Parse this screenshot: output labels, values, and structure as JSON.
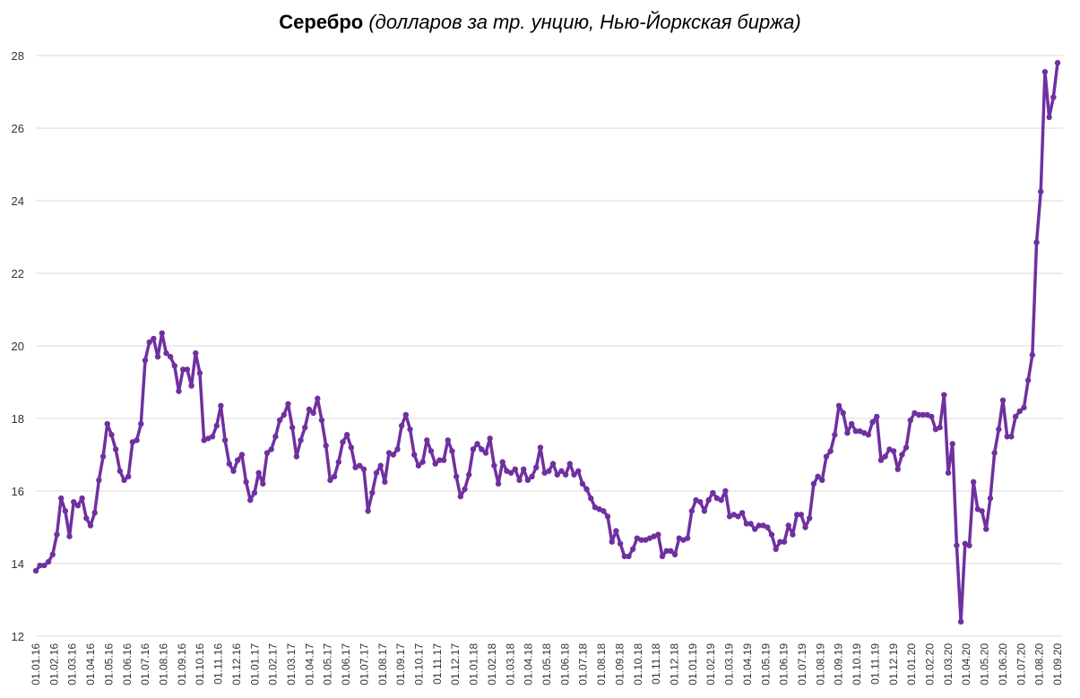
{
  "chart_data": {
    "type": "line",
    "title": "Серебро",
    "subtitle": "(долларов за тр. унцию, Нью-Йоркская биржа)",
    "xlabel": "",
    "ylabel": "",
    "ylim": [
      12,
      28
    ],
    "y_ticks": [
      "12",
      "14",
      "16",
      "18",
      "20",
      "22",
      "24",
      "26",
      "28"
    ],
    "grid": "horizontal",
    "x_tick_labels": [
      "01.01.16",
      "01.02.16",
      "01.03.16",
      "01.04.16",
      "01.05.16",
      "01.06.16",
      "01.07.16",
      "01.08.16",
      "01.09.16",
      "01.10.16",
      "01.11.16",
      "01.12.16",
      "01.01.17",
      "01.02.17",
      "01.03.17",
      "01.04.17",
      "01.05.17",
      "01.06.17",
      "01.07.17",
      "01.08.17",
      "01.09.17",
      "01.10.17",
      "01.11.17",
      "01.12.17",
      "01.01.18",
      "01.02.18",
      "01.03.18",
      "01.04.18",
      "01.05.18",
      "01.06.18",
      "01.07.18",
      "01.08.18",
      "01.09.18",
      "01.10.18",
      "01.11.18",
      "01.12.18",
      "01.01.19",
      "01.02.19",
      "01.03.19",
      "01.04.19",
      "01.05.19",
      "01.06.19",
      "01.07.19",
      "01.08.19",
      "01.09.19",
      "01.10.19",
      "01.11.19",
      "01.12.19",
      "01.01.20",
      "01.02.20",
      "01.03.20",
      "01.04.20",
      "01.05.20",
      "01.06.20",
      "01.07.20",
      "01.08.20",
      "01.09.20"
    ],
    "line_color": "#7030a0",
    "series": [
      {
        "values": [
          13.8,
          13.95,
          13.95,
          14.05,
          14.25,
          14.8,
          15.8,
          15.45,
          14.75,
          15.7,
          15.6,
          15.8,
          15.25,
          15.05,
          15.4,
          16.3,
          16.95,
          17.85,
          17.55,
          17.15,
          16.55,
          16.3,
          16.4,
          17.35,
          17.4,
          17.85,
          19.6,
          20.1,
          20.2,
          19.7,
          20.35,
          19.8,
          19.7,
          19.45,
          18.75,
          19.35,
          19.35,
          18.9,
          19.8,
          19.25,
          17.4,
          17.45,
          17.5,
          17.8,
          18.35,
          17.4,
          16.75,
          16.55,
          16.85,
          17.0,
          16.25,
          15.75,
          15.95,
          16.5,
          16.2,
          17.05,
          17.15,
          17.5,
          17.95,
          18.1,
          18.4,
          17.75,
          16.95,
          17.4,
          17.75,
          18.25,
          18.15,
          18.55,
          17.95,
          17.25,
          16.3,
          16.4,
          16.8,
          17.35,
          17.55,
          17.2,
          16.65,
          16.7,
          16.6,
          15.45,
          15.95,
          16.5,
          16.7,
          16.25,
          17.05,
          17.0,
          17.15,
          17.8,
          18.1,
          17.7,
          17.0,
          16.7,
          16.8,
          17.4,
          17.1,
          16.75,
          16.85,
          16.85,
          17.4,
          17.1,
          16.4,
          15.85,
          16.05,
          16.45,
          17.15,
          17.3,
          17.15,
          17.05,
          17.45,
          16.7,
          16.2,
          16.8,
          16.55,
          16.5,
          16.6,
          16.3,
          16.6,
          16.3,
          16.4,
          16.65,
          17.2,
          16.5,
          16.55,
          16.75,
          16.45,
          16.55,
          16.45,
          16.75,
          16.45,
          16.55,
          16.2,
          16.05,
          15.8,
          15.55,
          15.5,
          15.45,
          15.3,
          14.6,
          14.9,
          14.55,
          14.2,
          14.2,
          14.4,
          14.7,
          14.65,
          14.65,
          14.7,
          14.75,
          14.8,
          14.2,
          14.35,
          14.35,
          14.25,
          14.7,
          14.65,
          14.7,
          15.45,
          15.75,
          15.7,
          15.45,
          15.75,
          15.95,
          15.8,
          15.75,
          16.0,
          15.3,
          15.35,
          15.3,
          15.4,
          15.1,
          15.1,
          14.95,
          15.05,
          15.05,
          15.0,
          14.8,
          14.4,
          14.6,
          14.6,
          15.05,
          14.8,
          15.35,
          15.35,
          15.0,
          15.25,
          16.2,
          16.4,
          16.3,
          16.95,
          17.1,
          17.55,
          18.35,
          18.15,
          17.6,
          17.85,
          17.65,
          17.65,
          17.6,
          17.55,
          17.9,
          18.05,
          16.85,
          16.95,
          17.15,
          17.1,
          16.6,
          17.0,
          17.2,
          17.95,
          18.15,
          18.1,
          18.1,
          18.1,
          18.05,
          17.7,
          17.75,
          18.65,
          16.5,
          17.3,
          14.5,
          12.4,
          14.55,
          14.5,
          16.25,
          15.5,
          15.45,
          14.95,
          15.8,
          17.05,
          17.7,
          18.5,
          17.5,
          17.5,
          18.05,
          18.2,
          18.3,
          19.05,
          19.75,
          22.85,
          24.25,
          27.55,
          26.3,
          26.85,
          27.8
        ]
      }
    ]
  }
}
